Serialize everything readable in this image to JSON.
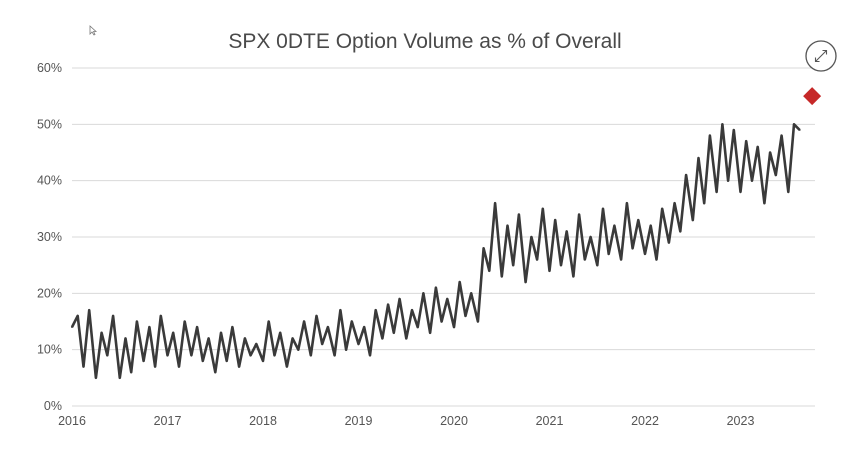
{
  "chart_data": {
    "type": "line",
    "title": "SPX 0DTE Option Volume as % of Overall",
    "xlabel": "",
    "ylabel": "",
    "x_ticks": [
      "2016",
      "2017",
      "2018",
      "2019",
      "2020",
      "2021",
      "2022",
      "2023"
    ],
    "y_ticks": [
      "0%",
      "10%",
      "20%",
      "30%",
      "40%",
      "50%",
      "60%"
    ],
    "xlim": [
      2016.0,
      2023.78
    ],
    "ylim": [
      0,
      60
    ],
    "grid": "horizontal",
    "legend": "none",
    "series": [
      {
        "x": [
          2016.0,
          2016.06,
          2016.12,
          2016.18,
          2016.25,
          2016.31,
          2016.37,
          2016.43,
          2016.5,
          2016.56,
          2016.62,
          2016.68,
          2016.75,
          2016.81,
          2016.87,
          2016.93,
          2017.0,
          2017.06,
          2017.12,
          2017.18,
          2017.25,
          2017.31,
          2017.37,
          2017.43,
          2017.5,
          2017.56,
          2017.62,
          2017.68,
          2017.75,
          2017.81,
          2017.87,
          2017.93,
          2018.0,
          2018.06,
          2018.12,
          2018.18,
          2018.25,
          2018.31,
          2018.37,
          2018.43,
          2018.5,
          2018.56,
          2018.62,
          2018.68,
          2018.75,
          2018.81,
          2018.87,
          2018.93,
          2019.0,
          2019.06,
          2019.12,
          2019.18,
          2019.25,
          2019.31,
          2019.37,
          2019.43,
          2019.5,
          2019.56,
          2019.62,
          2019.68,
          2019.75,
          2019.81,
          2019.87,
          2019.93,
          2020.0,
          2020.06,
          2020.12,
          2020.18,
          2020.25,
          2020.31,
          2020.37,
          2020.43,
          2020.5,
          2020.56,
          2020.62,
          2020.68,
          2020.75,
          2020.81,
          2020.87,
          2020.93,
          2021.0,
          2021.06,
          2021.12,
          2021.18,
          2021.25,
          2021.31,
          2021.37,
          2021.43,
          2021.5,
          2021.56,
          2021.62,
          2021.68,
          2021.75,
          2021.81,
          2021.87,
          2021.93,
          2022.0,
          2022.06,
          2022.12,
          2022.18,
          2022.25,
          2022.31,
          2022.37,
          2022.43,
          2022.5,
          2022.56,
          2022.62,
          2022.68,
          2022.75,
          2022.81,
          2022.87,
          2022.93,
          2023.0,
          2023.06,
          2023.12,
          2023.18,
          2023.25,
          2023.31,
          2023.37,
          2023.43,
          2023.5,
          2023.56,
          2023.62
        ],
        "values": [
          14,
          16,
          7,
          17,
          5,
          13,
          9,
          16,
          5,
          12,
          6,
          15,
          8,
          14,
          7,
          16,
          9,
          13,
          7,
          15,
          9,
          14,
          8,
          12,
          6,
          13,
          8,
          14,
          7,
          12,
          9,
          11,
          8,
          15,
          9,
          13,
          7,
          12,
          10,
          15,
          9,
          16,
          11,
          14,
          9,
          17,
          10,
          15,
          11,
          14,
          9,
          17,
          12,
          18,
          13,
          19,
          12,
          17,
          14,
          20,
          13,
          21,
          15,
          19,
          14,
          22,
          16,
          20,
          15,
          28,
          24,
          36,
          23,
          32,
          25,
          34,
          22,
          30,
          26,
          35,
          24,
          33,
          25,
          31,
          23,
          34,
          26,
          30,
          25,
          35,
          27,
          32,
          26,
          36,
          28,
          33,
          27,
          32,
          26,
          35,
          29,
          36,
          31,
          41,
          33,
          44,
          36,
          48,
          38,
          50,
          40,
          49,
          38,
          47,
          40,
          46,
          36,
          45,
          41,
          48,
          38,
          50,
          49
        ]
      }
    ],
    "markers": [
      {
        "x": 2023.75,
        "y": 55,
        "shape": "diamond",
        "color": "#c62828"
      }
    ],
    "line_color": "#3a3a3a"
  },
  "controls": {
    "expand_icon": "expand-arrows-icon",
    "cursor_icon": "cursor-icon"
  }
}
